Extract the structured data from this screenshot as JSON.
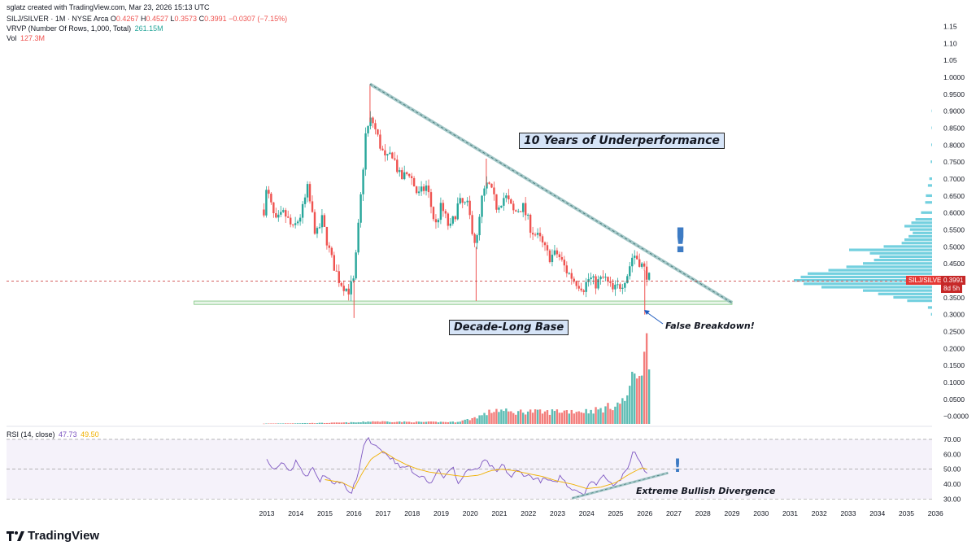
{
  "header": {
    "credit": "sglatz created with TradingView.com, Mar 23, 2026 15:13 UTC",
    "symbol_line": "SILJ/SILVER · 1M · NYSE Arca",
    "ohlc": {
      "o_label": "O",
      "o": "0.4267",
      "h_label": "H",
      "h": "0.4527",
      "l_label": "L",
      "l": "0.3573",
      "c_label": "C",
      "c": "0.3991",
      "chg": "−0.0307 (−7.15%)"
    },
    "vrvp_label": "VRVP (Number Of Rows, 1,000, Total)",
    "vrvp_value": "261.15M",
    "vol_label": "Vol",
    "vol_value": "127.3M",
    "rsi_label": "RSI (14, close)",
    "rsi_value": "47.73",
    "rsi_ma_value": "49.50"
  },
  "price_tag": {
    "symbol": "SILJ/SILVER",
    "price": "0.3991",
    "countdown": "8d 5h"
  },
  "annotations": {
    "title": "10 Years of Underperformance",
    "base": "Decade-Long Base",
    "breakdown": "False Breakdown!",
    "divergence": "Extreme Bullish Divergence",
    "exclaim": "!"
  },
  "logo": {
    "text": "TradingView"
  },
  "colors": {
    "up": "#26a69a",
    "down": "#ef5350",
    "rsi": "#7e57c2",
    "rsi_ma": "#f0b000",
    "trendline": "#8fbcbc",
    "base": "#b5dfb5",
    "profile": "#5bc8d9",
    "current": "#c62828"
  },
  "chart_data": {
    "type": "candlestick",
    "price_axis_ticks": [
      "1.15",
      "1.10",
      "1.05",
      "1.0000",
      "0.9500",
      "0.9000",
      "0.8500",
      "0.8000",
      "0.7500",
      "0.7000",
      "0.6500",
      "0.6000",
      "0.5500",
      "0.5000",
      "0.4500",
      "0.4000",
      "0.3500",
      "0.3000",
      "0.2500",
      "0.2000",
      "0.1500",
      "0.1000",
      "0.0500",
      "−0.0000"
    ],
    "x_axis_labels": [
      "2013",
      "2014",
      "2015",
      "2016",
      "2017",
      "2018",
      "2019",
      "2020",
      "2021",
      "2022",
      "2023",
      "2024",
      "2025",
      "2026",
      "2027",
      "2028",
      "2029",
      "2030",
      "2031",
      "2032",
      "2033",
      "2034",
      "2035",
      "2036"
    ],
    "rsi_axis_ticks": [
      "70.00",
      "60.00",
      "50.00",
      "40.00",
      "30.00"
    ],
    "price_anchors": [
      [
        2012.9,
        0.61
      ],
      [
        2013.0,
        0.67
      ],
      [
        2013.3,
        0.57
      ],
      [
        2013.6,
        0.6
      ],
      [
        2013.9,
        0.55
      ],
      [
        2014.2,
        0.6
      ],
      [
        2014.4,
        0.67
      ],
      [
        2014.7,
        0.53
      ],
      [
        2014.9,
        0.58
      ],
      [
        2015.2,
        0.47
      ],
      [
        2015.5,
        0.4
      ],
      [
        2015.8,
        0.37
      ],
      [
        2016.0,
        0.4
      ],
      [
        2016.2,
        0.61
      ],
      [
        2016.4,
        0.83
      ],
      [
        2016.6,
        0.88
      ],
      [
        2016.9,
        0.8
      ],
      [
        2017.1,
        0.75
      ],
      [
        2017.3,
        0.78
      ],
      [
        2017.6,
        0.7
      ],
      [
        2017.9,
        0.72
      ],
      [
        2018.2,
        0.65
      ],
      [
        2018.5,
        0.68
      ],
      [
        2018.8,
        0.56
      ],
      [
        2019.0,
        0.62
      ],
      [
        2019.3,
        0.55
      ],
      [
        2019.6,
        0.63
      ],
      [
        2019.9,
        0.62
      ],
      [
        2020.2,
        0.5
      ],
      [
        2020.4,
        0.64
      ],
      [
        2020.6,
        0.69
      ],
      [
        2020.9,
        0.62
      ],
      [
        2021.2,
        0.65
      ],
      [
        2021.5,
        0.6
      ],
      [
        2021.8,
        0.62
      ],
      [
        2022.1,
        0.55
      ],
      [
        2022.4,
        0.52
      ],
      [
        2022.7,
        0.47
      ],
      [
        2023.0,
        0.48
      ],
      [
        2023.3,
        0.43
      ],
      [
        2023.6,
        0.4
      ],
      [
        2023.9,
        0.38
      ],
      [
        2024.1,
        0.41
      ],
      [
        2024.3,
        0.39
      ],
      [
        2024.6,
        0.41
      ],
      [
        2024.9,
        0.37
      ],
      [
        2025.2,
        0.39
      ],
      [
        2025.4,
        0.42
      ],
      [
        2025.6,
        0.48
      ],
      [
        2025.8,
        0.46
      ],
      [
        2026.0,
        0.43
      ],
      [
        2026.2,
        0.4
      ]
    ],
    "wicks": [
      {
        "x": 2016.55,
        "value": 0.98
      },
      {
        "x": 2020.55,
        "value": 0.76
      },
      {
        "x": 2020.2,
        "value": 0.34
      },
      {
        "x": 2016.0,
        "value": 0.29
      },
      {
        "x": 2026.0,
        "value": 0.3
      }
    ],
    "trendline": {
      "from": [
        2016.55,
        0.98
      ],
      "to": [
        2029.0,
        0.335
      ]
    },
    "base_zone": {
      "from": 2010.5,
      "to": 2029.0,
      "low": 0.33,
      "high": 0.34
    },
    "current_price": 0.3991,
    "volume_profile": [
      [
        0.3,
        0.008
      ],
      [
        0.32,
        0.03
      ],
      [
        0.34,
        0.18
      ],
      [
        0.35,
        0.28
      ],
      [
        0.36,
        0.39
      ],
      [
        0.37,
        0.5
      ],
      [
        0.38,
        0.8
      ],
      [
        0.39,
        0.93
      ],
      [
        0.4,
        1.0
      ],
      [
        0.41,
        0.95
      ],
      [
        0.42,
        0.9
      ],
      [
        0.43,
        0.75
      ],
      [
        0.44,
        0.62
      ],
      [
        0.45,
        0.5
      ],
      [
        0.46,
        0.42
      ],
      [
        0.47,
        0.38
      ],
      [
        0.48,
        0.45
      ],
      [
        0.49,
        0.6
      ],
      [
        0.5,
        0.35
      ],
      [
        0.51,
        0.22
      ],
      [
        0.52,
        0.2
      ],
      [
        0.53,
        0.17
      ],
      [
        0.54,
        0.14
      ],
      [
        0.55,
        0.16
      ],
      [
        0.56,
        0.2
      ],
      [
        0.57,
        0.15
      ],
      [
        0.58,
        0.12
      ],
      [
        0.6,
        0.08
      ],
      [
        0.63,
        0.05
      ],
      [
        0.65,
        0.045
      ],
      [
        0.68,
        0.03
      ],
      [
        0.7,
        0.02
      ],
      [
        0.75,
        0.01
      ],
      [
        0.8,
        0.006
      ],
      [
        0.85,
        0.004
      ],
      [
        0.9,
        0.003
      ]
    ],
    "volume_anchors": [
      [
        2012.9,
        0.001
      ],
      [
        2015.0,
        0.003
      ],
      [
        2016.2,
        0.005
      ],
      [
        2016.6,
        0.008
      ],
      [
        2018.0,
        0.006
      ],
      [
        2019.5,
        0.006
      ],
      [
        2020.0,
        0.015
      ],
      [
        2020.5,
        0.03
      ],
      [
        2020.9,
        0.045
      ],
      [
        2021.4,
        0.035
      ],
      [
        2022.0,
        0.04
      ],
      [
        2022.5,
        0.035
      ],
      [
        2023.0,
        0.04
      ],
      [
        2023.5,
        0.04
      ],
      [
        2024.0,
        0.04
      ],
      [
        2024.5,
        0.045
      ],
      [
        2025.0,
        0.06
      ],
      [
        2025.3,
        0.07
      ],
      [
        2025.5,
        0.12
      ],
      [
        2025.8,
        0.17
      ],
      [
        2026.0,
        0.2
      ],
      [
        2026.1,
        0.27
      ],
      [
        2026.25,
        0.13
      ]
    ],
    "rsi_anchors": [
      [
        2013.0,
        55.3
      ],
      [
        2013.3,
        49.0
      ],
      [
        2013.6,
        55.6
      ],
      [
        2013.8,
        46.7
      ],
      [
        2014.0,
        56.7
      ],
      [
        2014.3,
        44.5
      ],
      [
        2014.6,
        50.0
      ],
      [
        2014.8,
        41.7
      ],
      [
        2015.0,
        46.4
      ],
      [
        2015.3,
        40.0
      ],
      [
        2015.6,
        41.1
      ],
      [
        2015.9,
        33.9
      ],
      [
        2016.2,
        49.4
      ],
      [
        2016.3,
        66.1
      ],
      [
        2016.5,
        71.1
      ],
      [
        2016.7,
        65.3
      ],
      [
        2016.9,
        64.4
      ],
      [
        2017.1,
        60.0
      ],
      [
        2017.4,
        55.6
      ],
      [
        2017.6,
        50.0
      ],
      [
        2017.9,
        51.7
      ],
      [
        2018.1,
        45.6
      ],
      [
        2018.4,
        46.7
      ],
      [
        2018.6,
        40.0
      ],
      [
        2018.9,
        50.0
      ],
      [
        2019.1,
        44.4
      ],
      [
        2019.4,
        51.1
      ],
      [
        2019.6,
        40.0
      ],
      [
        2019.9,
        50.0
      ],
      [
        2020.1,
        48.3
      ],
      [
        2020.3,
        51.1
      ],
      [
        2020.5,
        55.6
      ],
      [
        2020.7,
        52.2
      ],
      [
        2020.9,
        47.2
      ],
      [
        2021.1,
        53.3
      ],
      [
        2021.4,
        44.4
      ],
      [
        2021.6,
        48.9
      ],
      [
        2021.9,
        46.1
      ],
      [
        2022.1,
        45.0
      ],
      [
        2022.4,
        42.2
      ],
      [
        2022.6,
        43.3
      ],
      [
        2022.9,
        40.0
      ],
      [
        2023.1,
        45.6
      ],
      [
        2023.4,
        37.8
      ],
      [
        2023.6,
        36.7
      ],
      [
        2023.9,
        33.3
      ],
      [
        2024.1,
        41.1
      ],
      [
        2024.3,
        40.0
      ],
      [
        2024.6,
        46.1
      ],
      [
        2024.9,
        40.0
      ],
      [
        2025.1,
        41.7
      ],
      [
        2025.4,
        49.4
      ],
      [
        2025.6,
        62.8
      ],
      [
        2025.8,
        56.7
      ],
      [
        2026.0,
        48.9
      ],
      [
        2026.15,
        47.7
      ]
    ],
    "rsi_ma_anchors": [
      [
        2015.0,
        43.0
      ],
      [
        2015.6,
        41.0
      ],
      [
        2016.0,
        37.0
      ],
      [
        2016.3,
        48.0
      ],
      [
        2016.6,
        57.0
      ],
      [
        2017.0,
        62.0
      ],
      [
        2017.4,
        57.0
      ],
      [
        2017.8,
        53.0
      ],
      [
        2018.2,
        50.0
      ],
      [
        2018.6,
        48.0
      ],
      [
        2019.0,
        47.0
      ],
      [
        2019.4,
        46.0
      ],
      [
        2019.8,
        45.0
      ],
      [
        2020.3,
        46.0
      ],
      [
        2020.7,
        49.0
      ],
      [
        2021.1,
        50.0
      ],
      [
        2021.5,
        49.0
      ],
      [
        2022.0,
        47.0
      ],
      [
        2022.5,
        45.0
      ],
      [
        2023.0,
        42.0
      ],
      [
        2023.5,
        40.0
      ],
      [
        2024.0,
        37.0
      ],
      [
        2024.5,
        38.0
      ],
      [
        2025.0,
        41.0
      ],
      [
        2025.5,
        47.0
      ],
      [
        2025.9,
        51.0
      ],
      [
        2026.15,
        49.5
      ]
    ],
    "divergence_line": {
      "from": [
        2023.5,
        30.5
      ],
      "to": [
        2026.8,
        47.5
      ]
    }
  }
}
